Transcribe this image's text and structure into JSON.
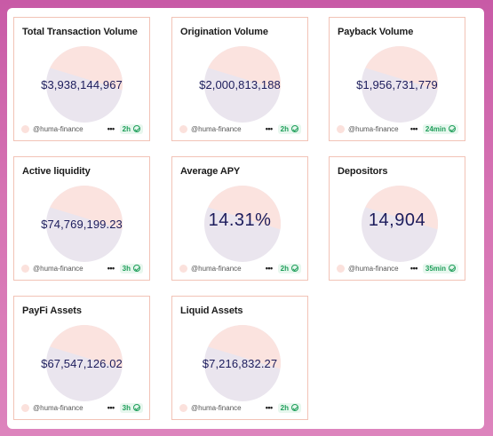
{
  "cards": [
    {
      "title": "Total Transaction Volume",
      "value": "$3,938,144,967",
      "handle": "@huma-finance",
      "more": "•••",
      "age": "2h",
      "big": false
    },
    {
      "title": "Origination Volume",
      "value": "$2,000,813,188",
      "handle": "@huma-finance",
      "more": "•••",
      "age": "2h",
      "big": false
    },
    {
      "title": "Payback Volume",
      "value": "$1,956,731,779",
      "handle": "@huma-finance",
      "more": "•••",
      "age": "24min",
      "big": false
    },
    {
      "title": "Active liquidity",
      "value": "$74,769,199.23",
      "handle": "@huma-finance",
      "more": "•••",
      "age": "3h",
      "big": false
    },
    {
      "title": "Average APY",
      "value": "14.31%",
      "handle": "@huma-finance",
      "more": "•••",
      "age": "2h",
      "big": true
    },
    {
      "title": "Depositors",
      "value": "14,904",
      "handle": "@huma-finance",
      "more": "•••",
      "age": "35min",
      "big": true
    },
    {
      "title": "PayFi Assets",
      "value": "$67,547,126.02",
      "handle": "@huma-finance",
      "more": "•••",
      "age": "3h",
      "big": false
    },
    {
      "title": "Liquid Assets",
      "value": "$7,216,832.27",
      "handle": "@huma-finance",
      "more": "•••",
      "age": "2h",
      "big": false
    }
  ],
  "colors": {
    "card_border": "#f2c3b6",
    "value_text": "#1c1c5c",
    "badge_bg": "#e7f7ee",
    "badge_text": "#1f9e5a",
    "background_gradient": "#c85aa6"
  },
  "icons": {
    "badge": "check-circle-icon",
    "more": "more-dots-icon",
    "avatar": "avatar-icon"
  }
}
